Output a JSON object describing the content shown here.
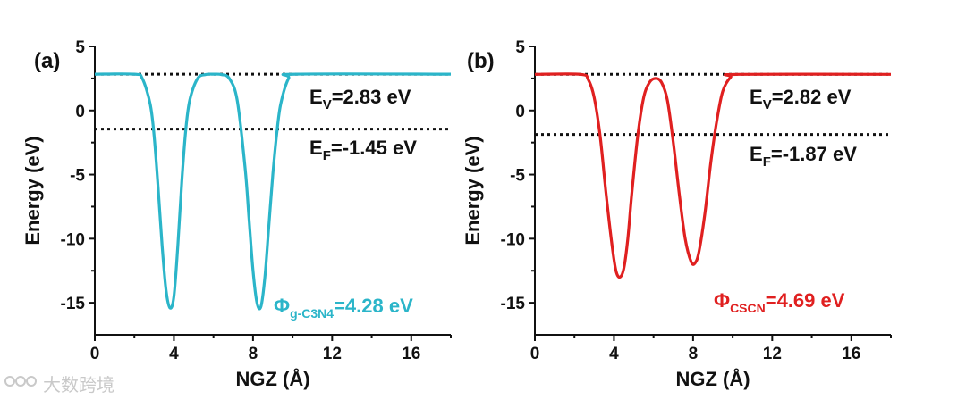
{
  "chart_data": [
    {
      "type": "line",
      "panel_label": "(a)",
      "xlabel": "NGZ (Å)",
      "ylabel": "Energy (eV)",
      "xlim": [
        0,
        18
      ],
      "ylim": [
        -17.5,
        5
      ],
      "xticks": [
        0,
        4,
        8,
        12,
        16
      ],
      "yticks": [
        5,
        0,
        -5,
        -10,
        -15
      ],
      "grid": false,
      "line_color": "#2bb5c9",
      "vacuum_level": 2.83,
      "fermi_level": -1.45,
      "series": [
        {
          "x": [
            0,
            2.0,
            2.4,
            2.8,
            3.0,
            3.2,
            3.4,
            3.6,
            3.8,
            4.0,
            4.2,
            4.4,
            4.6,
            4.8,
            5.2,
            5.6,
            6.0,
            6.4,
            6.8,
            7.2,
            7.6,
            7.8,
            8.0,
            8.2,
            8.4,
            8.6,
            8.8,
            9.0,
            9.2,
            9.4,
            9.8,
            10.2,
            18
          ],
          "y": [
            2.83,
            2.83,
            2.5,
            0.5,
            -2.0,
            -6.0,
            -10.5,
            -14.0,
            -15.4,
            -14.5,
            -10.5,
            -5.5,
            -1.5,
            0.8,
            2.5,
            2.8,
            2.83,
            2.8,
            2.5,
            0.8,
            -4.5,
            -8.5,
            -12.5,
            -15.0,
            -15.3,
            -13.0,
            -9.0,
            -5.0,
            -1.8,
            0.5,
            2.5,
            2.83,
            2.83
          ]
        }
      ],
      "annotations": {
        "ev_main": "E",
        "ev_sub": "V",
        "ev_value": "=2.83 eV",
        "ef_main": "E",
        "ef_sub": "F",
        "ef_value": "=-1.45 eV",
        "phi_main": "Φ",
        "phi_sub": "g-C3N4",
        "phi_value": "=4.28 eV"
      }
    },
    {
      "type": "line",
      "panel_label": "(b)",
      "xlabel": "NGZ (Å)",
      "ylabel": "Energy (eV)",
      "xlim": [
        0,
        18
      ],
      "ylim": [
        -17.5,
        5
      ],
      "xticks": [
        0,
        4,
        8,
        12,
        16
      ],
      "yticks": [
        5,
        0,
        -5,
        -10,
        -15
      ],
      "grid": false,
      "line_color": "#e02020",
      "vacuum_level": 2.82,
      "fermi_level": -1.87,
      "series": [
        {
          "x": [
            0,
            2.3,
            2.7,
            3.0,
            3.3,
            3.6,
            3.9,
            4.1,
            4.3,
            4.5,
            4.7,
            4.9,
            5.2,
            5.5,
            5.8,
            6.1,
            6.4,
            6.7,
            7.0,
            7.3,
            7.6,
            7.9,
            8.1,
            8.3,
            8.6,
            8.9,
            9.2,
            9.5,
            9.9,
            10.3,
            18
          ],
          "y": [
            2.82,
            2.82,
            2.4,
            1.0,
            -2.0,
            -6.5,
            -10.5,
            -12.5,
            -13.0,
            -12.3,
            -10.0,
            -6.5,
            -2.0,
            1.0,
            2.2,
            2.5,
            2.2,
            0.8,
            -2.5,
            -6.5,
            -10.0,
            -11.8,
            -11.9,
            -11.0,
            -8.0,
            -4.0,
            -0.8,
            1.5,
            2.6,
            2.82,
            2.82
          ]
        }
      ],
      "annotations": {
        "ev_main": "E",
        "ev_sub": "V",
        "ev_value": "=2.82 eV",
        "ef_main": "E",
        "ef_sub": "F",
        "ef_value": "=-1.87 eV",
        "phi_main": "Φ",
        "phi_sub": "CSCN",
        "phi_value": "=4.69 eV"
      }
    }
  ],
  "watermark": {
    "icon": "brand-logo-icon",
    "text": "大数跨境"
  }
}
